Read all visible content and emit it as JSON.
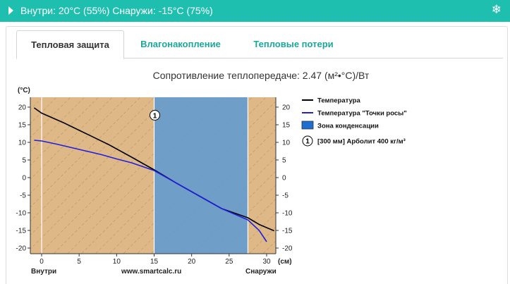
{
  "header": {
    "title": "Внутри: 20°C (55%) Снаружи: -15°C (75%)",
    "play_icon": "play-icon",
    "settings_icon": "snowflake-icon"
  },
  "tabs": [
    {
      "label": "Тепловая защита",
      "active": true
    },
    {
      "label": "Влагонакопление",
      "active": false
    },
    {
      "label": "Тепловые потери",
      "active": false
    }
  ],
  "colors": {
    "accent": "#1fbfb0",
    "tab_link": "#1aa89a",
    "material_zone": "#deb887",
    "condensation_zone": "#6f9ec9",
    "temperature_line": "#000000",
    "dewpoint_line": "#1f1fe0"
  },
  "chart_data": {
    "type": "line",
    "title": "Сопротивление теплопередаче: 2.47 (м²•°С)/Вт",
    "ylabel": "(°С)",
    "xlabel": "(см)",
    "x_left_label": "Внутри",
    "x_center_label": "www.smartcalc.ru",
    "x_right_label": "Снаружи",
    "xlim": [
      0,
      30
    ],
    "ylim": [
      -20,
      20
    ],
    "x_ticks": [
      0,
      5,
      10,
      15,
      20,
      25,
      30
    ],
    "y_ticks": [
      20,
      15,
      10,
      5,
      0,
      -5,
      -10,
      -15,
      -20
    ],
    "layer_marker": {
      "label": "1",
      "x": 15,
      "y": 17.5
    },
    "condensation_zone": [
      15,
      27.5
    ],
    "series": [
      {
        "name": "Температура",
        "x": [
          -1,
          0,
          3,
          6,
          9,
          12,
          15,
          18,
          21,
          24,
          27.5,
          29,
          31
        ],
        "y": [
          19.8,
          18.3,
          15.5,
          12.4,
          9.3,
          5.8,
          2.2,
          -1.6,
          -5.2,
          -8.8,
          -11.4,
          -13.3,
          -15.1
        ]
      },
      {
        "name": "Температура \"Точки росы\"",
        "x": [
          -1,
          0,
          2,
          4,
          6,
          8,
          10,
          12,
          15,
          18,
          21,
          24,
          27.5,
          29,
          30
        ],
        "y": [
          10.6,
          10.4,
          9.5,
          8.5,
          7.5,
          6.5,
          5.3,
          4.2,
          2.0,
          -1.6,
          -5.2,
          -8.8,
          -12.0,
          -15.0,
          -18.2
        ]
      }
    ],
    "legend": [
      {
        "type": "line",
        "label": "Температура"
      },
      {
        "type": "line",
        "label": "Температура \"Точки росы\""
      },
      {
        "type": "box",
        "label": "Зона конденсации"
      },
      {
        "type": "marker",
        "number": "1",
        "label": "[300 мм] Арболит 400 кг/м³"
      }
    ],
    "legend_position": "right"
  }
}
